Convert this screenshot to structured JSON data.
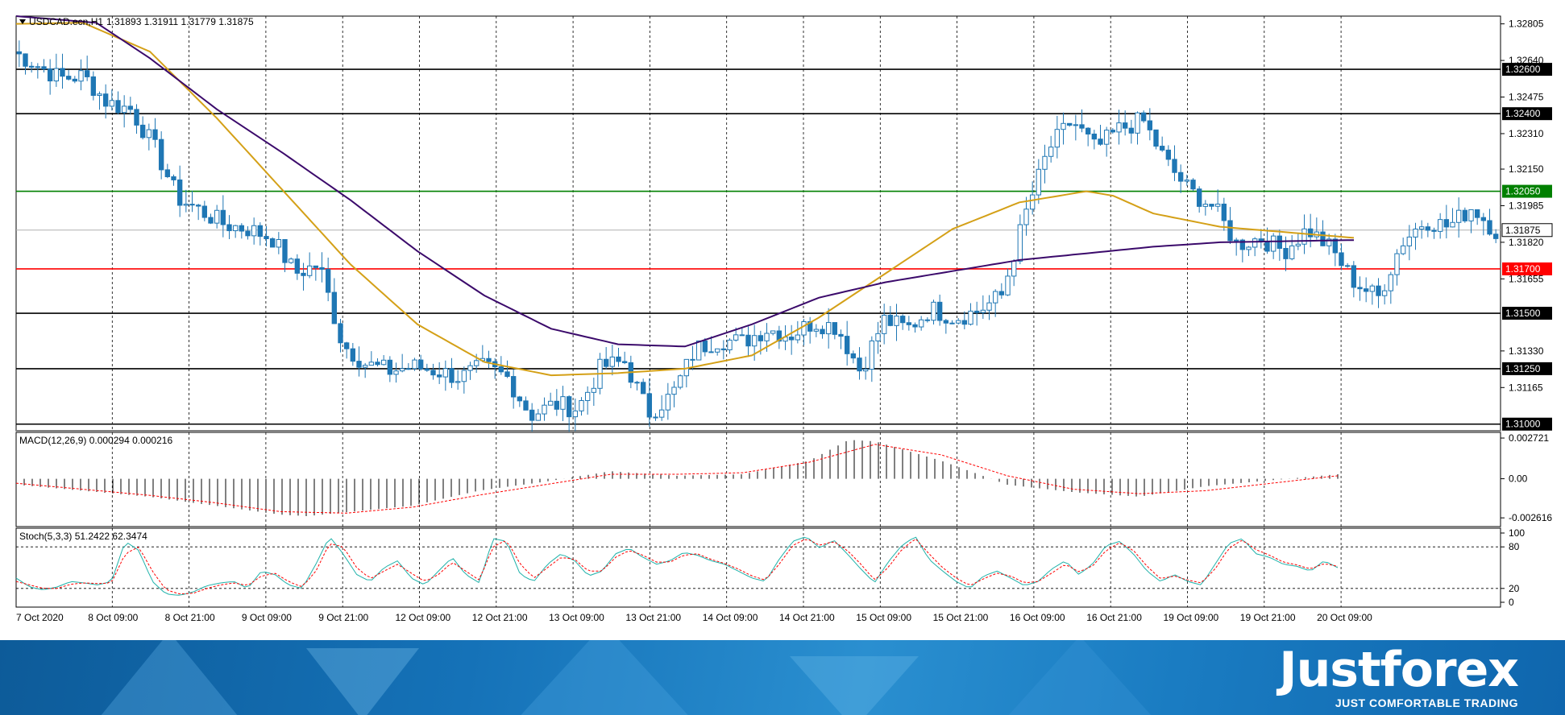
{
  "chart_data": {
    "type": "candlestick",
    "symbol_header": "USDCAD.ecn,H1",
    "ohlc_header": "1.31893 1.31911 1.31779 1.31875",
    "last_price": 1.31875,
    "ylim": [
      1.3097,
      1.3284
    ],
    "price_ticks": [
      "1.32805",
      "1.32640",
      "1.32475",
      "1.32310",
      "1.32150",
      "1.31985",
      "1.31820",
      "1.31655",
      "1.31330",
      "1.31165"
    ],
    "price_tick_values": [
      1.32805,
      1.3264,
      1.32475,
      1.3231,
      1.3215,
      1.31985,
      1.3182,
      1.31655,
      1.3133,
      1.31165
    ],
    "horizontal_levels": [
      {
        "value": 1.326,
        "label": "1.32600",
        "color": "#000000"
      },
      {
        "value": 1.324,
        "label": "1.32400",
        "color": "#000000"
      },
      {
        "value": 1.3205,
        "label": "1.32050",
        "color": "#008000"
      },
      {
        "value": 1.317,
        "label": "1.31700",
        "color": "#ff0000"
      },
      {
        "value": 1.315,
        "label": "1.31500",
        "color": "#000000"
      },
      {
        "value": 1.3125,
        "label": "1.31250",
        "color": "#000000"
      },
      {
        "value": 1.31,
        "label": "1.31000",
        "color": "#000000"
      }
    ],
    "x_labels": [
      "7 Oct 2020",
      "8 Oct 09:00",
      "8 Oct 21:00",
      "9 Oct 09:00",
      "9 Oct 21:00",
      "12 Oct 09:00",
      "12 Oct 21:00",
      "13 Oct 09:00",
      "13 Oct 21:00",
      "14 Oct 09:00",
      "14 Oct 21:00",
      "15 Oct 09:00",
      "15 Oct 21:00",
      "16 Oct 09:00",
      "16 Oct 21:00",
      "19 Oct 09:00",
      "19 Oct 21:00",
      "20 Oct 09:00"
    ],
    "close_anchors": [
      1.3268,
      1.3262,
      1.3256,
      1.3257,
      1.3245,
      1.3242,
      1.3225,
      1.3202,
      1.3196,
      1.319,
      1.3188,
      1.3184,
      1.3168,
      1.3172,
      1.3136,
      1.3127,
      1.3124,
      1.3126,
      1.3124,
      1.3121,
      1.3126,
      1.3121,
      1.3104,
      1.3109,
      1.3107,
      1.3126,
      1.3128,
      1.3105,
      1.3113,
      1.3134,
      1.3138,
      1.3137,
      1.3143,
      1.314,
      1.3146,
      1.3144,
      1.3124,
      1.3147,
      1.3143,
      1.3152,
      1.3148,
      1.3151,
      1.3158,
      1.3194,
      1.3224,
      1.3237,
      1.3224,
      1.3233,
      1.3237,
      1.3218,
      1.3205,
      1.3198,
      1.3181,
      1.3184,
      1.3178,
      1.3188,
      1.3179,
      1.3164,
      1.3157,
      1.3182,
      1.3192,
      1.3189,
      1.3198,
      1.3187
    ],
    "ma_fast_anchors": [
      [
        0,
        1.32805
      ],
      [
        0.05,
        1.3281
      ],
      [
        0.1,
        1.3268
      ],
      [
        0.15,
        1.3238
      ],
      [
        0.2,
        1.3205
      ],
      [
        0.25,
        1.3172
      ],
      [
        0.3,
        1.3145
      ],
      [
        0.35,
        1.3128
      ],
      [
        0.4,
        1.3122
      ],
      [
        0.45,
        1.3123
      ],
      [
        0.5,
        1.3125
      ],
      [
        0.55,
        1.3131
      ],
      [
        0.6,
        1.3148
      ],
      [
        0.65,
        1.3168
      ],
      [
        0.7,
        1.3188
      ],
      [
        0.75,
        1.32
      ],
      [
        0.8,
        1.3205
      ],
      [
        0.82,
        1.3203
      ],
      [
        0.85,
        1.3195
      ],
      [
        0.9,
        1.3189
      ],
      [
        1,
        1.3184
      ]
    ],
    "ma_slow_anchors": [
      [
        0,
        1.3284
      ],
      [
        0.06,
        1.3281
      ],
      [
        0.1,
        1.3265
      ],
      [
        0.15,
        1.3242
      ],
      [
        0.2,
        1.3222
      ],
      [
        0.25,
        1.3201
      ],
      [
        0.3,
        1.3178
      ],
      [
        0.35,
        1.3158
      ],
      [
        0.4,
        1.3143
      ],
      [
        0.45,
        1.3136
      ],
      [
        0.5,
        1.3135
      ],
      [
        0.55,
        1.3145
      ],
      [
        0.6,
        1.3157
      ],
      [
        0.65,
        1.3164
      ],
      [
        0.7,
        1.3169
      ],
      [
        0.75,
        1.3174
      ],
      [
        0.8,
        1.3177
      ],
      [
        0.85,
        1.318
      ],
      [
        0.9,
        1.3182
      ],
      [
        1,
        1.3183
      ]
    ],
    "macd": {
      "label": "MACD(12,26,9) 0.000294 0.000216",
      "ticks": [
        "0.002721",
        "0.00",
        "-0.002616"
      ],
      "tick_values": [
        0.002721,
        0,
        -0.002616
      ],
      "hist_anchors": [
        [
          0,
          -0.0004
        ],
        [
          0.05,
          -0.0008
        ],
        [
          0.1,
          -0.0012
        ],
        [
          0.15,
          -0.0018
        ],
        [
          0.2,
          -0.0024
        ],
        [
          0.22,
          -0.0025
        ],
        [
          0.3,
          -0.0018
        ],
        [
          0.35,
          -0.0008
        ],
        [
          0.4,
          -0.0002
        ],
        [
          0.45,
          0.0005
        ],
        [
          0.5,
          0.0002
        ],
        [
          0.55,
          0.0003
        ],
        [
          0.6,
          0.0012
        ],
        [
          0.63,
          0.0026
        ],
        [
          0.65,
          0.0025
        ],
        [
          0.7,
          0.0012
        ],
        [
          0.75,
          -0.0004
        ],
        [
          0.8,
          -0.0009
        ],
        [
          0.85,
          -0.0012
        ],
        [
          0.9,
          -0.0005
        ],
        [
          1,
          0.0003
        ]
      ],
      "signal_anchors": [
        [
          0,
          -0.0003
        ],
        [
          0.05,
          -0.0007
        ],
        [
          0.1,
          -0.0011
        ],
        [
          0.15,
          -0.0016
        ],
        [
          0.2,
          -0.0022
        ],
        [
          0.25,
          -0.0023
        ],
        [
          0.3,
          -0.0019
        ],
        [
          0.35,
          -0.0011
        ],
        [
          0.4,
          -0.0004
        ],
        [
          0.45,
          0.0003
        ],
        [
          0.5,
          0.0003
        ],
        [
          0.55,
          0.0004
        ],
        [
          0.6,
          0.0011
        ],
        [
          0.65,
          0.0023
        ],
        [
          0.7,
          0.0016
        ],
        [
          0.75,
          0.0002
        ],
        [
          0.8,
          -0.0007
        ],
        [
          0.85,
          -0.001
        ],
        [
          0.9,
          -0.0008
        ],
        [
          1,
          0.0002
        ]
      ]
    },
    "stoch": {
      "label": "Stoch(5,3,3) 51.2422 62.3474",
      "ticks": [
        "100",
        "80",
        "20",
        "0"
      ],
      "tick_values": [
        100,
        80,
        20,
        0
      ],
      "levels": [
        80,
        20
      ],
      "main_anchors": [
        35,
        22,
        18,
        22,
        30,
        28,
        25,
        30,
        88,
        75,
        30,
        12,
        10,
        15,
        24,
        28,
        30,
        20,
        45,
        40,
        25,
        20,
        55,
        95,
        70,
        40,
        30,
        50,
        60,
        35,
        25,
        45,
        65,
        40,
        28,
        92,
        88,
        40,
        30,
        55,
        70,
        60,
        38,
        45,
        70,
        78,
        65,
        55,
        60,
        72,
        68,
        60,
        55,
        45,
        35,
        30,
        62,
        88,
        95,
        78,
        90,
        70,
        48,
        28,
        58,
        82,
        95,
        62,
        45,
        30,
        20,
        38,
        45,
        35,
        24,
        30,
        48,
        60,
        40,
        55,
        82,
        88,
        70,
        45,
        30,
        40,
        30,
        25,
        55,
        85,
        92,
        70,
        65,
        55,
        52,
        45,
        60,
        50
      ],
      "signal_anchors": [
        30,
        25,
        20,
        20,
        26,
        28,
        27,
        28,
        70,
        80,
        45,
        18,
        12,
        13,
        20,
        25,
        28,
        24,
        38,
        42,
        30,
        22,
        45,
        85,
        80,
        50,
        34,
        45,
        55,
        42,
        30,
        40,
        58,
        45,
        32,
        80,
        90,
        55,
        35,
        50,
        65,
        62,
        45,
        45,
        65,
        75,
        68,
        58,
        58,
        68,
        70,
        62,
        56,
        48,
        38,
        32,
        55,
        82,
        92,
        82,
        88,
        75,
        55,
        32,
        50,
        76,
        92,
        70,
        50,
        35,
        24,
        34,
        42,
        38,
        28,
        30,
        42,
        55,
        44,
        52,
        75,
        86,
        75,
        52,
        34,
        38,
        32,
        28,
        48,
        78,
        90,
        76,
        68,
        58,
        54,
        48,
        56,
        52
      ]
    },
    "candle_color": "#1f77b4",
    "ma_fast_color": "#d4a017",
    "ma_slow_color": "#3b0a6b"
  },
  "branding": {
    "logo_text": "Justforex",
    "tagline": "JUST COMFORTABLE TRADING"
  }
}
